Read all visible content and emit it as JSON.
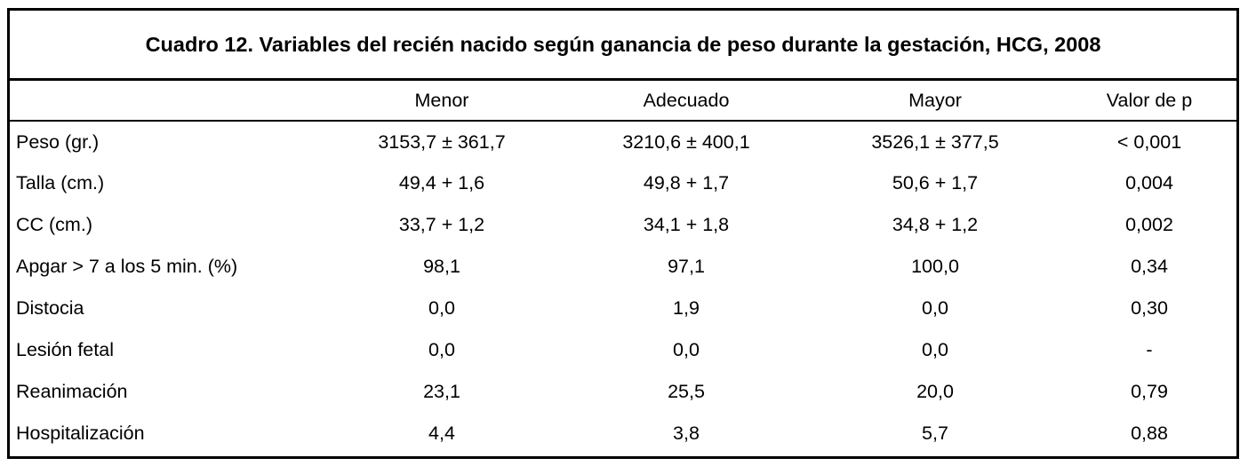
{
  "title": "Cuadro 12. Variables del recién nacido según ganancia de peso durante la gestación, HCG, 2008",
  "columns": [
    "",
    "Menor",
    "Adecuado",
    "Mayor",
    "Valor de p"
  ],
  "rows": [
    {
      "label": "Peso (gr.)",
      "values": [
        "3153,7 ± 361,7",
        "3210,6 ± 400,1",
        "3526,1 ± 377,5",
        "< 0,001"
      ]
    },
    {
      "label": "Talla (cm.)",
      "values": [
        "49,4 + 1,6",
        "49,8 + 1,7",
        "50,6 + 1,7",
        "0,004"
      ]
    },
    {
      "label": "CC (cm.)",
      "values": [
        "33,7 + 1,2",
        "34,1 + 1,8",
        "34,8 + 1,2",
        "0,002"
      ]
    },
    {
      "label": "Apgar > 7 a los 5 min. (%)",
      "values": [
        "98,1",
        "97,1",
        "100,0",
        "0,34"
      ]
    },
    {
      "label": "Distocia",
      "values": [
        "0,0",
        "1,9",
        "0,0",
        "0,30"
      ]
    },
    {
      "label": "Lesión fetal",
      "values": [
        "0,0",
        "0,0",
        "0,0",
        "-"
      ]
    },
    {
      "label": "Reanimación",
      "values": [
        "23,1",
        "25,5",
        "20,0",
        "0,79"
      ]
    },
    {
      "label": "Hospitalización",
      "values": [
        "4,4",
        "3,8",
        "5,7",
        "0,88"
      ]
    }
  ]
}
